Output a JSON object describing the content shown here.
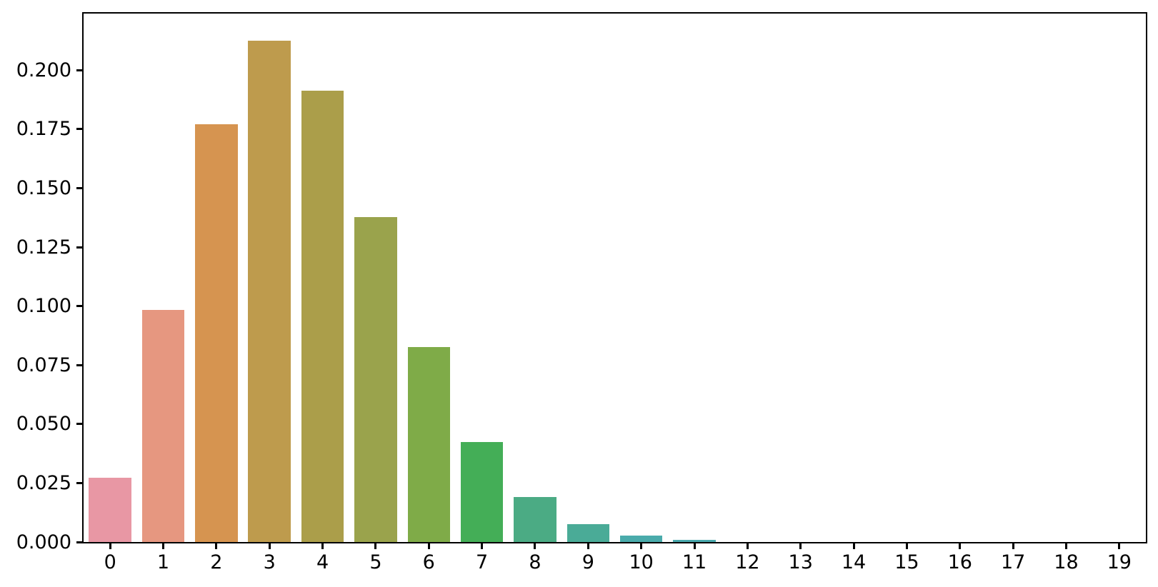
{
  "chart_data": {
    "type": "bar",
    "title": "",
    "xlabel": "",
    "ylabel": "",
    "categories": [
      "0",
      "1",
      "2",
      "3",
      "4",
      "5",
      "6",
      "7",
      "8",
      "9",
      "10",
      "11",
      "12",
      "13",
      "14",
      "15",
      "16",
      "17",
      "18",
      "19"
    ],
    "values": [
      0.02732,
      0.09837,
      0.17706,
      0.21247,
      0.19122,
      0.13768,
      0.08261,
      0.04248,
      0.01912,
      0.00765,
      0.00275,
      0.0009,
      0,
      0,
      0,
      0,
      0,
      0,
      0,
      0
    ],
    "bar_colors": [
      "#e897a4",
      "#e69780",
      "#d69450",
      "#be9b4d",
      "#ab9e4a",
      "#9aa34c",
      "#7fab48",
      "#44ae57",
      "#4bab84",
      "#4aab97",
      "#4aabab",
      "#49a9ad"
    ],
    "yticks": [
      0.0,
      0.025,
      0.05,
      0.075,
      0.1,
      0.125,
      0.15,
      0.175,
      0.2
    ],
    "ytick_labels": [
      "0.000",
      "0.025",
      "0.050",
      "0.075",
      "0.100",
      "0.125",
      "0.150",
      "0.175",
      "0.200"
    ],
    "ylim": [
      0,
      0.224
    ],
    "bar_width_fraction": 0.8,
    "grid": false,
    "legend": null,
    "spine_color": "#000000",
    "background_color": "#ffffff"
  }
}
